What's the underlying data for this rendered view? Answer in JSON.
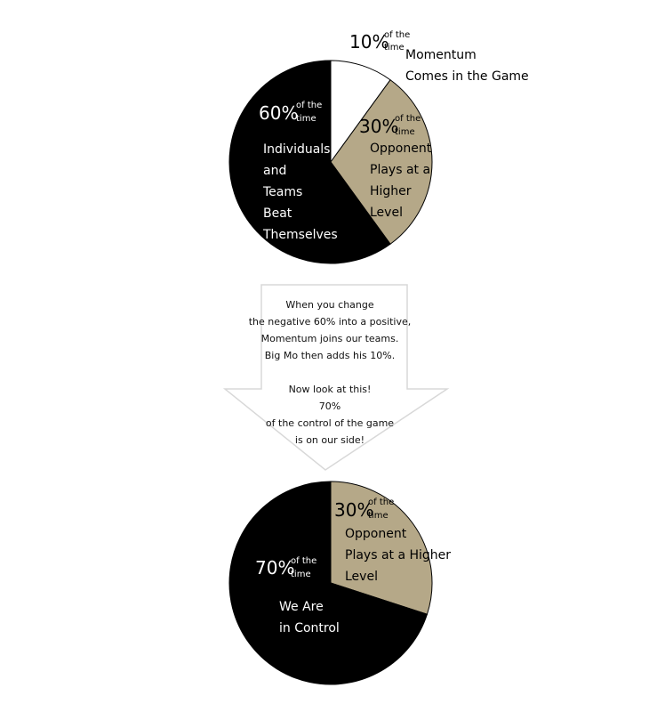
{
  "chart_data": [
    {
      "type": "pie",
      "title": "",
      "slices": [
        {
          "value": 10,
          "label": "10%",
          "sublabel": "of the time",
          "description": "Momentum Comes in the Game",
          "color": "#ffffff"
        },
        {
          "value": 30,
          "label": "30%",
          "sublabel": "of the time",
          "description": "Opponent Plays at a Higher Level",
          "color": "#b5a888"
        },
        {
          "value": 60,
          "label": "60%",
          "sublabel": "of the time",
          "description": "Individuals and Teams Beat Themselves",
          "color": "#000000"
        }
      ]
    },
    {
      "type": "pie",
      "title": "",
      "slices": [
        {
          "value": 30,
          "label": "30%",
          "sublabel": "of the time",
          "description": "Opponent Plays at a Higher Level",
          "color": "#b5a888"
        },
        {
          "value": 70,
          "label": "70%",
          "sublabel": "of the time",
          "description": "We Are in Control",
          "color": "#000000"
        }
      ]
    }
  ],
  "arrow": {
    "lines": [
      "When you change",
      "the negative 60% into a positive,",
      "Momentum joins our teams.",
      "Big Mo then adds his 10%.",
      "",
      "Now look at this!",
      "70%",
      "of the control of the game",
      "is on our side!"
    ]
  },
  "pie1": {
    "s10": {
      "pct": "10%",
      "of": "of the",
      "time": "time",
      "desc1": "Momentum",
      "desc2": "Comes in the Game"
    },
    "s30": {
      "pct": "30%",
      "of": "of the",
      "time": "time",
      "desc1": "Opponent",
      "desc2": "Plays at a",
      "desc3": "Higher",
      "desc4": "Level"
    },
    "s60": {
      "pct": "60%",
      "of": "of the",
      "time": "time",
      "desc1": "Individuals",
      "desc2": "and",
      "desc3": "Teams",
      "desc4": "Beat",
      "desc5": "Themselves"
    }
  },
  "pie2": {
    "s30": {
      "pct": "30%",
      "of": "of the",
      "time": "time",
      "desc1": "Opponent",
      "desc2": "Plays at a Higher",
      "desc3": "Level"
    },
    "s70": {
      "pct": "70%",
      "of": "of the",
      "time": "time",
      "desc1": "We Are",
      "desc2": "in Control"
    }
  }
}
